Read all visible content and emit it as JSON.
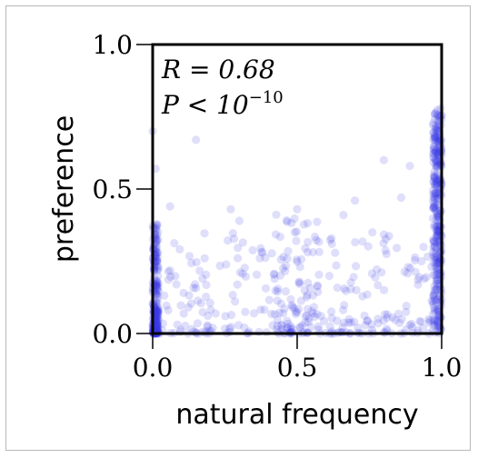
{
  "chart_data": {
    "type": "scatter",
    "title": "",
    "xlabel": "natural frequency",
    "ylabel": "preference",
    "xlim": [
      0.0,
      1.0
    ],
    "ylim": [
      0.0,
      1.0
    ],
    "x_ticks": [
      0.0,
      0.5,
      1.0
    ],
    "y_ticks": [
      0.0,
      0.5,
      1.0
    ],
    "x_tick_labels": [
      "0.0",
      "0.5",
      "1.0"
    ],
    "y_tick_labels": [
      "0.0",
      "0.5",
      "1.0"
    ],
    "grid": false,
    "point_color": "#3b3be8",
    "annotation": {
      "r_label": "R = 0.68",
      "p_label_base": "P < 10",
      "p_label_exponent": "−10"
    },
    "clusters": [
      {
        "x_range": [
          0.0,
          0.02
        ],
        "y_min": 0.0,
        "y_max": 0.38,
        "y_skew": 2.2,
        "count": 240
      },
      {
        "x_range": [
          0.97,
          1.0
        ],
        "y_min": 0.0,
        "y_max": 0.78,
        "y_skew": 0.9,
        "count": 320
      },
      {
        "x_range": [
          0.02,
          0.97
        ],
        "y_min": 0.0,
        "y_max": 0.35,
        "y_skew": 2.0,
        "count": 260
      },
      {
        "x_range": [
          0.42,
          0.58
        ],
        "y_min": 0.0,
        "y_max": 0.42,
        "y_skew": 1.5,
        "count": 80
      }
    ],
    "outliers": [
      {
        "x": 0.0,
        "y": 0.7
      },
      {
        "x": 0.01,
        "y": 0.57
      },
      {
        "x": 0.15,
        "y": 0.67
      },
      {
        "x": 0.06,
        "y": 0.44
      },
      {
        "x": 0.27,
        "y": 0.43
      },
      {
        "x": 0.3,
        "y": 0.39
      },
      {
        "x": 0.5,
        "y": 0.43
      },
      {
        "x": 0.62,
        "y": 0.31
      },
      {
        "x": 0.66,
        "y": 0.41
      },
      {
        "x": 0.7,
        "y": 0.46
      },
      {
        "x": 0.76,
        "y": 0.35
      },
      {
        "x": 0.8,
        "y": 0.6
      },
      {
        "x": 0.86,
        "y": 0.47
      },
      {
        "x": 0.89,
        "y": 0.58
      },
      {
        "x": 0.93,
        "y": 0.25
      },
      {
        "x": 0.38,
        "y": 0.28
      },
      {
        "x": 0.18,
        "y": 0.26
      }
    ]
  }
}
